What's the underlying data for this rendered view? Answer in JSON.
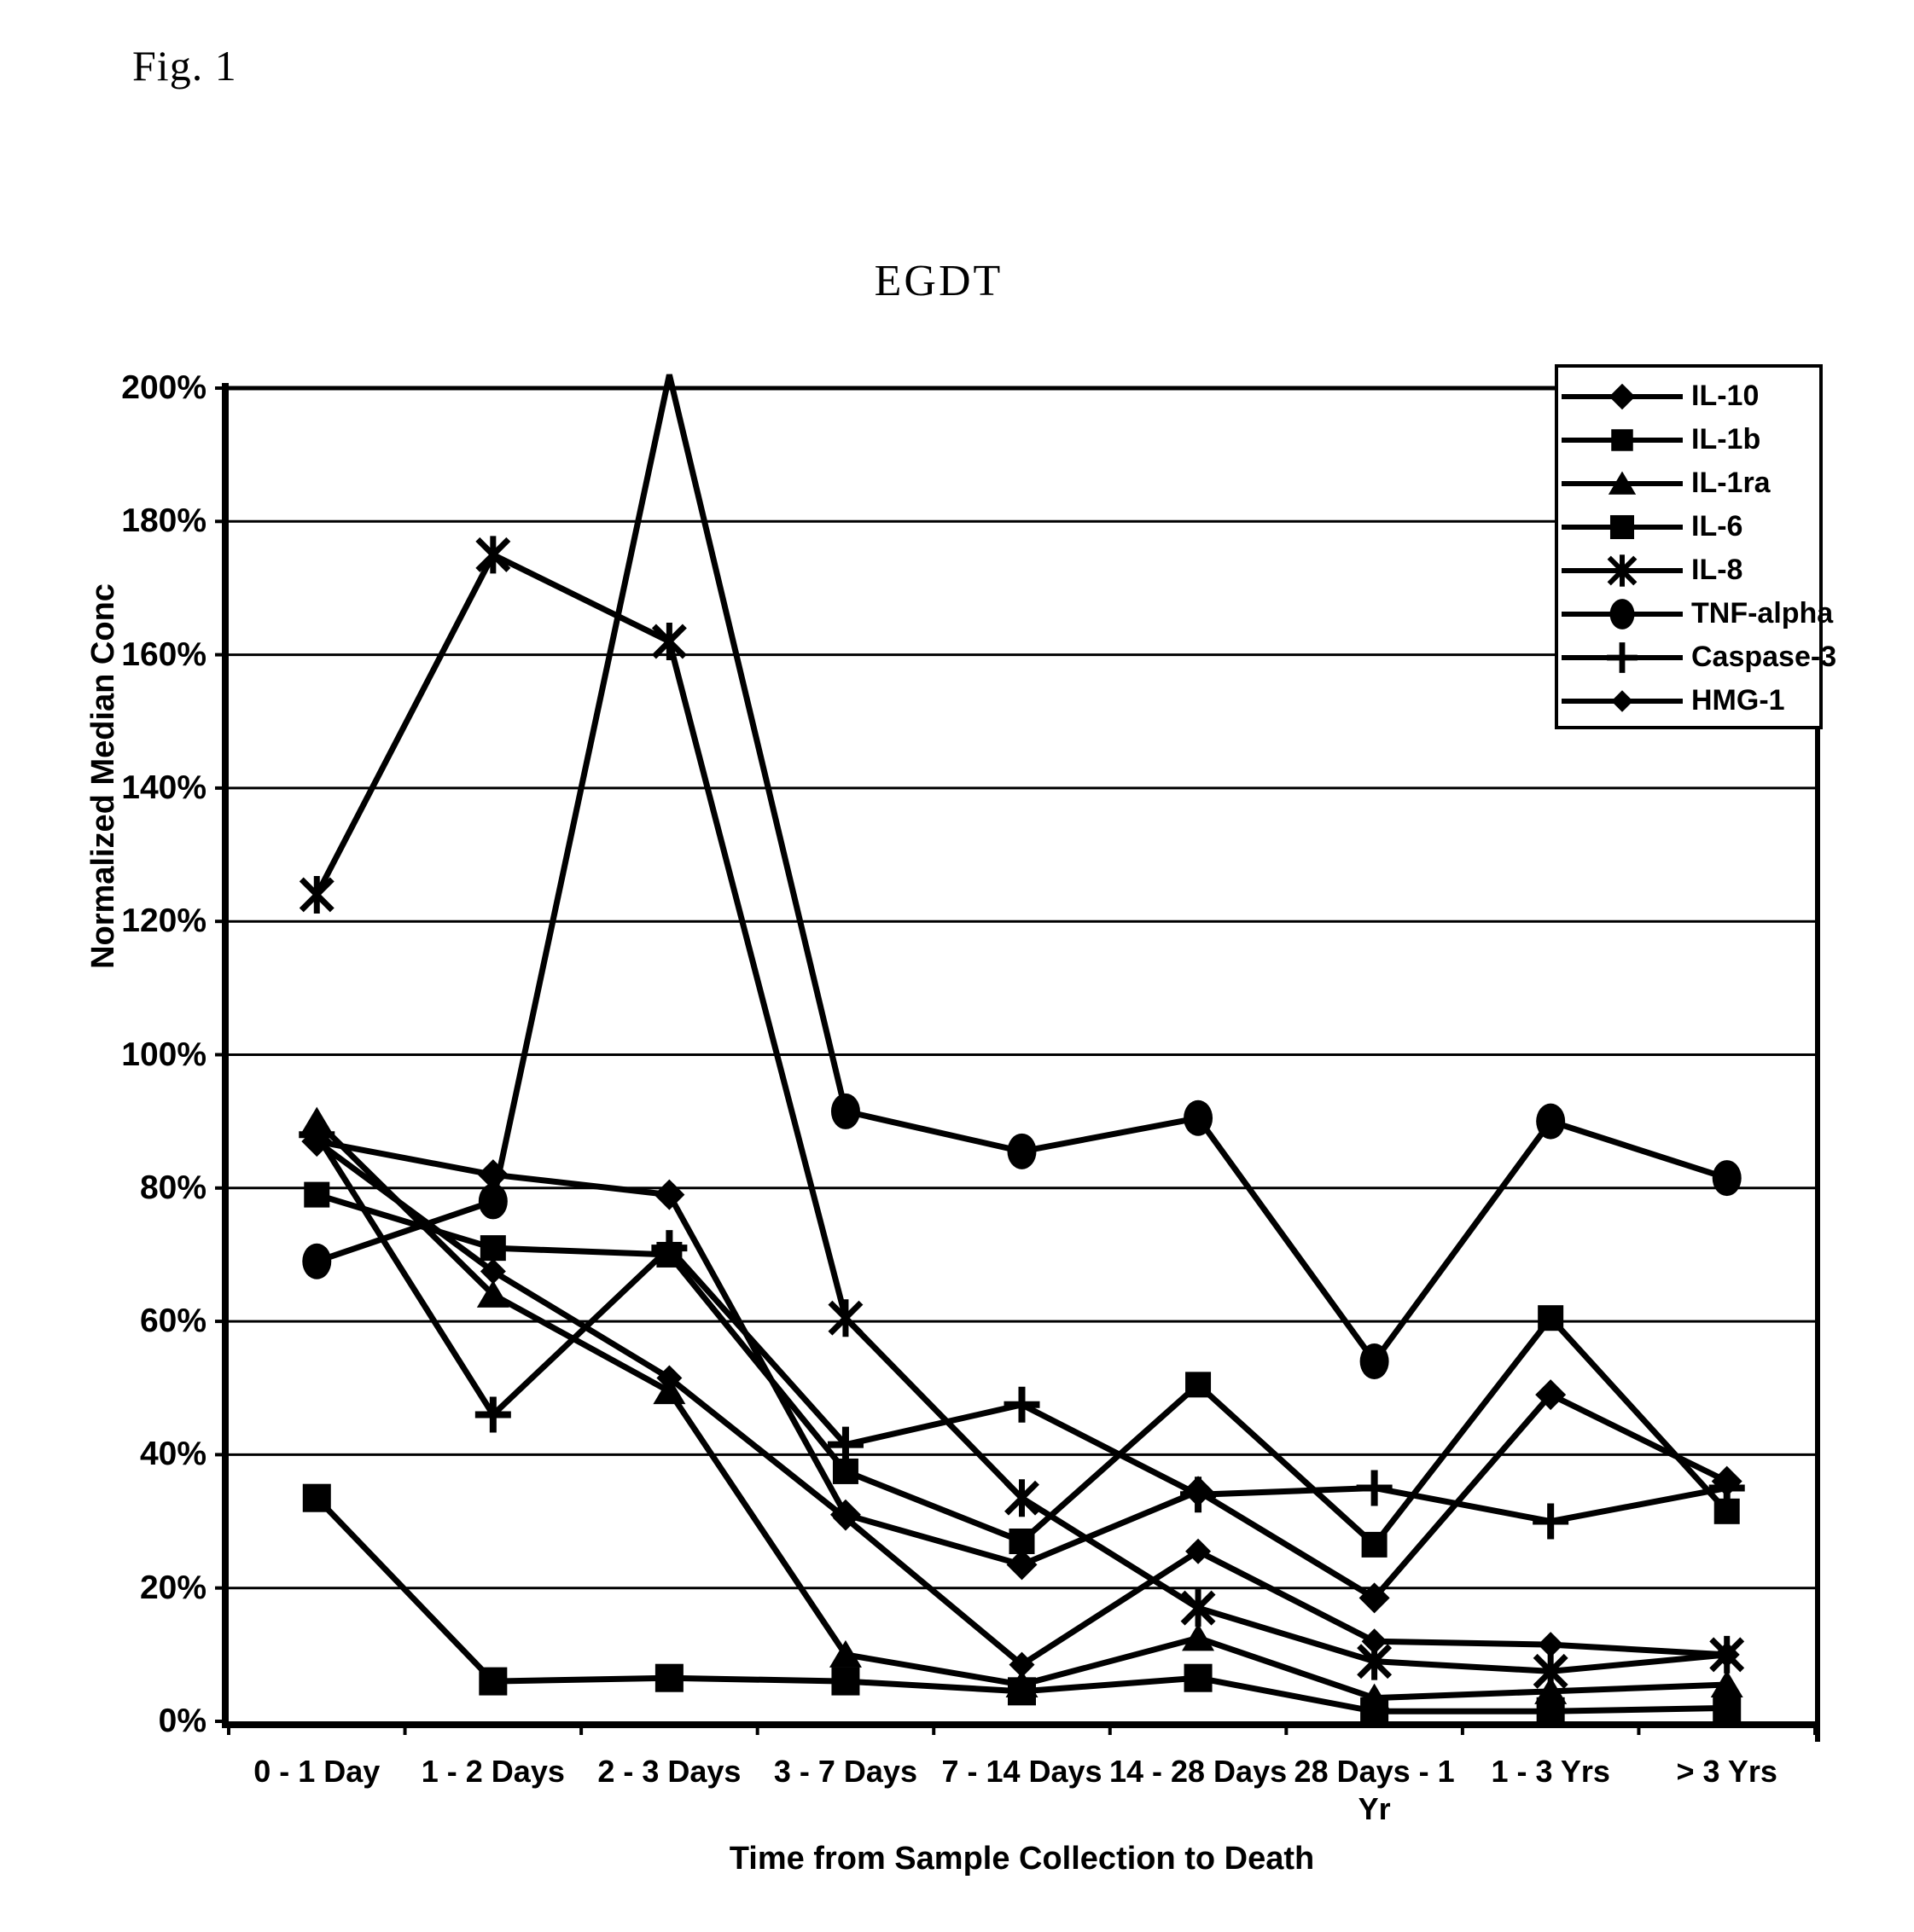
{
  "fig_label": "Fig. 1",
  "title": "EGDT",
  "y_axis": {
    "title": "Normalized Median Conc",
    "ticks": [
      "0%",
      "20%",
      "40%",
      "60%",
      "80%",
      "100%",
      "120%",
      "140%",
      "160%",
      "180%",
      "200%"
    ],
    "min": 0,
    "max": 200
  },
  "x_axis": {
    "title": "Time from Sample Collection to Death"
  },
  "colors": {
    "ink": "#000000",
    "paper": "#ffffff"
  },
  "chart_data": {
    "type": "line",
    "title": "EGDT",
    "xlabel": "Time from Sample Collection to Death",
    "ylabel": "Normalized Median Conc",
    "ylim": [
      0,
      200
    ],
    "grid": "horizontal",
    "legend_position": "top-right",
    "categories": [
      "0 - 1 Day",
      "1 - 2 Days",
      "2 - 3 Days",
      "3 - 7 Days",
      "7 - 14 Days",
      "14 - 28 Days",
      "28 Days - 1\nYr",
      "1 - 3 Yrs",
      "> 3 Yrs"
    ],
    "unit": "percent",
    "series": [
      {
        "name": "IL-10",
        "marker": "diamond",
        "values": [
          87,
          82,
          79,
          31,
          23.5,
          34.5,
          18.5,
          49,
          36
        ]
      },
      {
        "name": "IL-1b",
        "marker": "square-small",
        "values": [
          79,
          71,
          70,
          37.5,
          27,
          50.5,
          26.5,
          60.5,
          31.5
        ]
      },
      {
        "name": "IL-1ra",
        "marker": "triangle",
        "values": [
          90,
          64,
          49.5,
          10,
          5.5,
          12.5,
          3.5,
          4.5,
          5.5
        ]
      },
      {
        "name": "IL-6",
        "marker": "square",
        "values": [
          33.5,
          6,
          6.5,
          6,
          4.5,
          6.5,
          1.5,
          1.5,
          2
        ]
      },
      {
        "name": "IL-8",
        "marker": "star",
        "values": [
          124,
          175,
          162,
          60.5,
          33.5,
          17,
          9,
          7.5,
          10
        ]
      },
      {
        "name": "TNF-alpha",
        "marker": "circle",
        "values": [
          69,
          78,
          202,
          91.5,
          85.5,
          90.5,
          54,
          90,
          81.5
        ]
      },
      {
        "name": "Caspase-3",
        "marker": "plus",
        "values": [
          88,
          46,
          71,
          41.5,
          47.5,
          34,
          35,
          30,
          35
        ]
      },
      {
        "name": "HMG-1",
        "marker": "diamond-small",
        "values": [
          87,
          67.5,
          51.5,
          30.5,
          8.5,
          25.5,
          12,
          11.5,
          10
        ]
      }
    ]
  }
}
